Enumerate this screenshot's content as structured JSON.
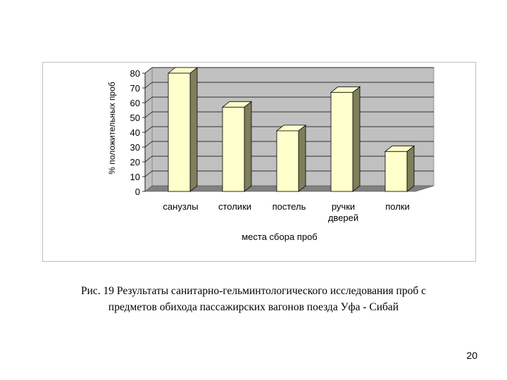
{
  "caption": {
    "line1": "Рис. 19 Результаты санитарно-гельминтологического исследования проб с",
    "line2": "предметов обихода пассажирских вагонов поезда Уфа - Сибай"
  },
  "page_number": "20",
  "colors": {
    "bar_front": "#FFFFCC",
    "bar_side": "#7F7F5C",
    "bar_top": "#FFFFCC",
    "wall": "#C0C0C0",
    "floor": "#808080"
  },
  "chart_data": {
    "type": "bar",
    "categories": [
      "санузлы",
      "столики",
      "постель",
      "ручки дверей",
      "полки"
    ],
    "category_lines": [
      [
        "санузлы"
      ],
      [
        "столики"
      ],
      [
        "постель"
      ],
      [
        "ручки",
        "дверей"
      ],
      [
        "полки"
      ]
    ],
    "values": [
      80,
      57,
      41,
      67,
      27
    ],
    "ylabel": "% положительных проб",
    "xlabel": "места сбора проб",
    "yticks": [
      0,
      10,
      20,
      30,
      40,
      50,
      60,
      70,
      80
    ],
    "ylim": [
      0,
      80
    ],
    "grid": true,
    "three_d": true
  }
}
